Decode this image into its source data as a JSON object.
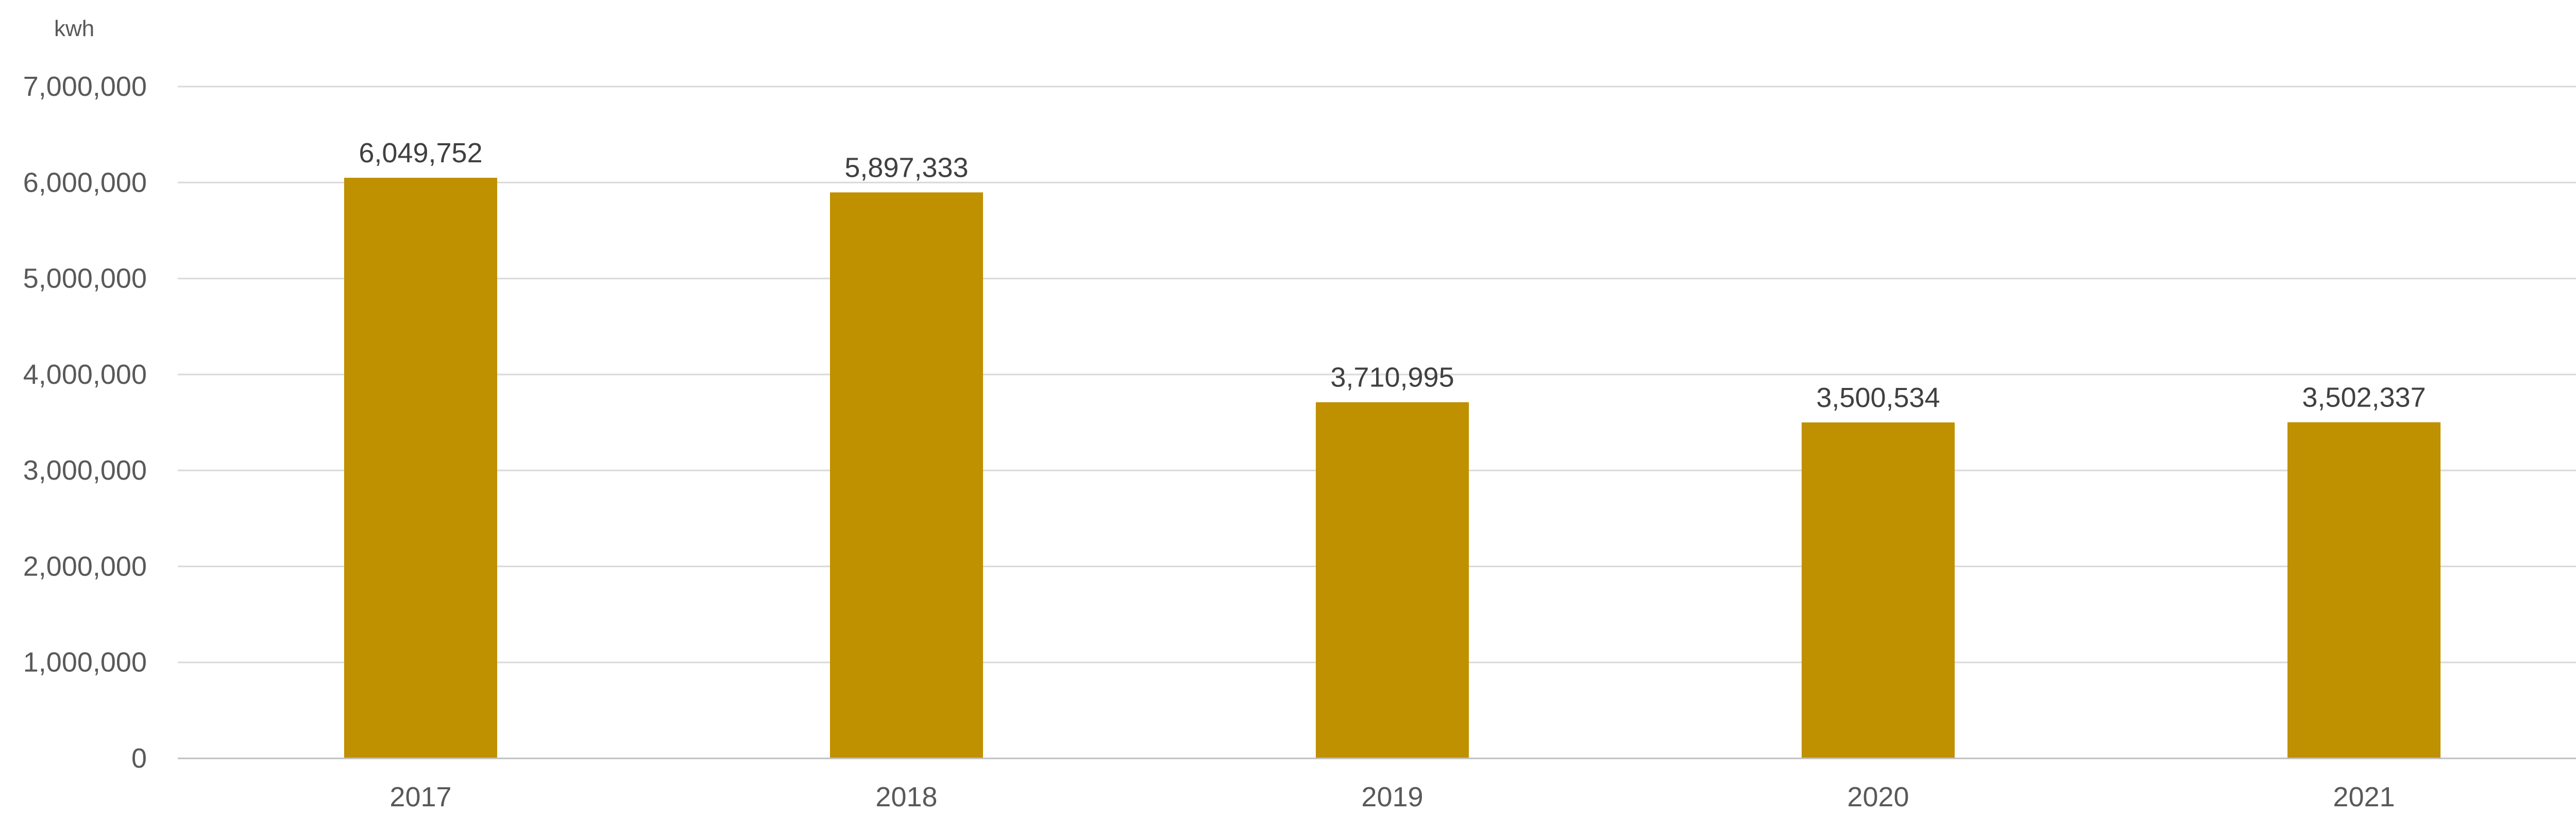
{
  "chart_data": {
    "type": "bar",
    "unit_label": "kwh",
    "categories": [
      "2017",
      "2018",
      "2019",
      "2020",
      "2021"
    ],
    "values": [
      6049752,
      5897333,
      3710995,
      3500534,
      3502337
    ],
    "data_labels": [
      "6,049,752",
      "5,897,333",
      "3,710,995",
      "3,500,534",
      "3,502,337"
    ],
    "y_ticks": [
      "0",
      "1,000,000",
      "2,000,000",
      "3,000,000",
      "4,000,000",
      "5,000,000",
      "6,000,000",
      "7,000,000"
    ],
    "ylim": [
      0,
      7000000
    ],
    "grid": true,
    "legend": "none",
    "bar_color": "#BF9000"
  }
}
